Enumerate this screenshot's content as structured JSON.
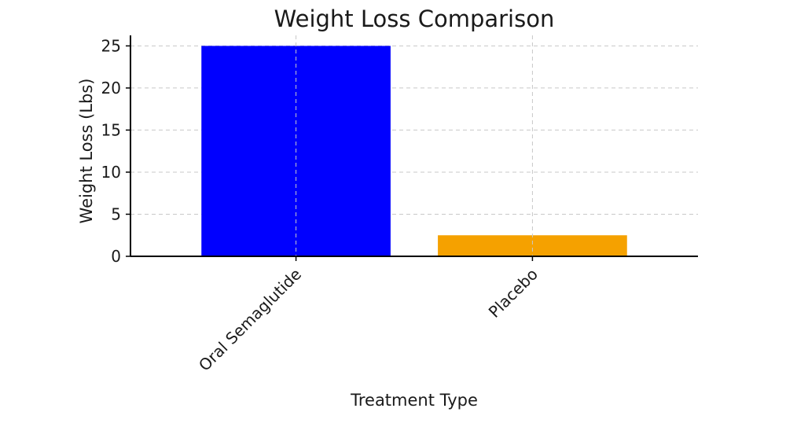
{
  "chart_data": {
    "type": "bar",
    "title": "Weight Loss Comparison",
    "xlabel": "Treatment Type",
    "ylabel": "Weight Loss (Lbs)",
    "categories": [
      "Oral Semaglutide",
      "Placebo"
    ],
    "values": [
      25,
      2.5
    ],
    "colors": [
      "#0000ff",
      "#f5a100"
    ],
    "ylim": [
      0,
      26.25
    ],
    "yticks": [
      0,
      5,
      10,
      15,
      20,
      25
    ],
    "grid": true,
    "legend": "none"
  }
}
